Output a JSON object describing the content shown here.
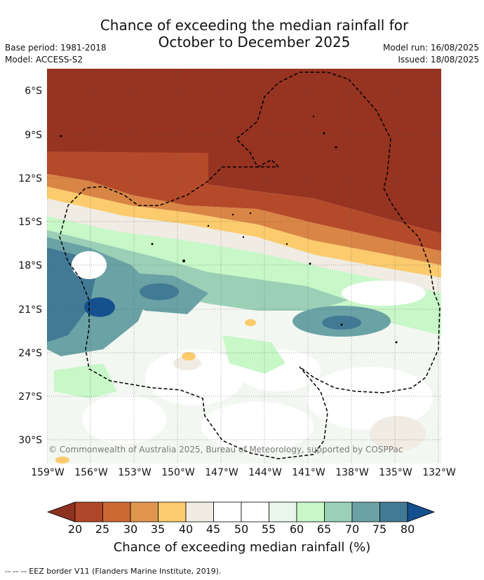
{
  "title_line1": "Chance of exceeding the median rainfall for",
  "title_line2": "October to December 2025",
  "base_period": "Base period: 1981-2018",
  "model": "Model: ACCESS-S2",
  "model_run": "Model run: 16/08/2025",
  "issued": "Issued: 18/08/2025",
  "y_ticks": [
    "6°S",
    "9°S",
    "12°S",
    "15°S",
    "18°S",
    "21°S",
    "24°S",
    "27°S",
    "30°S"
  ],
  "x_ticks": [
    "159°W",
    "156°W",
    "153°W",
    "150°W",
    "147°W",
    "144°W",
    "141°W",
    "138°W",
    "135°W",
    "132°W"
  ],
  "copyright": "© Commonwealth of Australia 2025, Bureau of Meteorology, supported by COSPPac",
  "colorbar": {
    "ticks": [
      "20",
      "25",
      "30",
      "35",
      "40",
      "45",
      "50",
      "55",
      "60",
      "65",
      "70",
      "75",
      "80"
    ],
    "colors": [
      "#8e3220",
      "#b0472a",
      "#cd6835",
      "#e0954d",
      "#fbcb6d",
      "#f0ece4",
      "#ffffff",
      "#ffffff",
      "#eaf6ea",
      "#c8f7c8",
      "#9bd0b6",
      "#6aa2a6",
      "#427a95",
      "#14508e"
    ],
    "label": "Chance of exceeding median rainfall (%)"
  },
  "eez_legend": "-- -- -- EEZ border V11 (Flanders Marine Institute, 2019).",
  "map_extent": {
    "lon_west": -159.5,
    "lon_east": -131.8,
    "lat_north": -4.7,
    "lat_south": -31.6
  }
}
